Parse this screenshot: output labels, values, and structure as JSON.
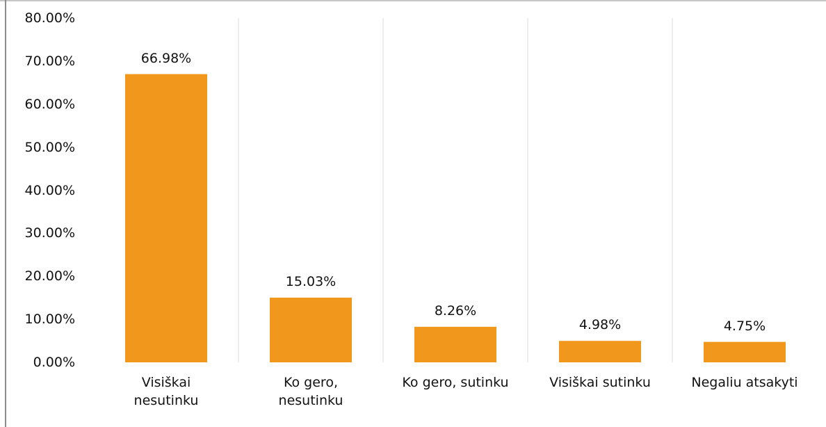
{
  "chart_data": {
    "type": "bar",
    "categories": [
      "Visiškai\nnesutinku",
      "Ko gero,\nnesutinku",
      "Ko gero, sutinku",
      "Visiškai sutinku",
      "Negaliu atsakyti"
    ],
    "values": [
      66.98,
      15.03,
      8.26,
      4.98,
      4.75
    ],
    "value_labels": [
      "66.98%",
      "15.03%",
      "8.26%",
      "4.98%",
      "4.75%"
    ],
    "color": "#f0971c",
    "ylim": [
      0,
      80
    ],
    "yticks": [
      {
        "value": 0,
        "label": "0.00%"
      },
      {
        "value": 10,
        "label": "10.00%"
      },
      {
        "value": 20,
        "label": "20.00%"
      },
      {
        "value": 30,
        "label": "30.00%"
      },
      {
        "value": 40,
        "label": "40.00%"
      },
      {
        "value": 50,
        "label": "50.00%"
      },
      {
        "value": 60,
        "label": "60.00%"
      },
      {
        "value": 70,
        "label": "70.00%"
      },
      {
        "value": 80,
        "label": "80.00%"
      }
    ]
  }
}
